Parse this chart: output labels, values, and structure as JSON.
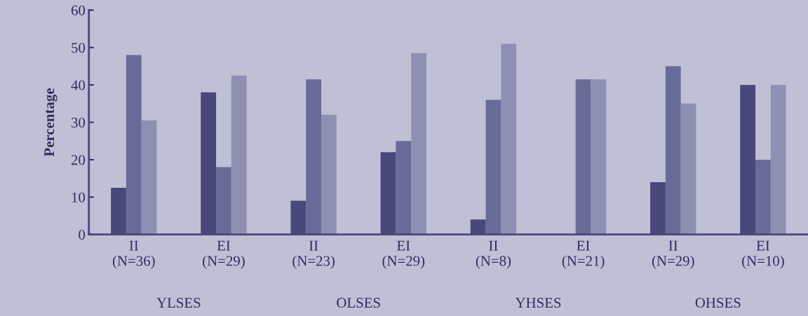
{
  "chart_data": {
    "type": "bar",
    "ylabel": "Percentage",
    "categories": [
      "II\n(N=36)",
      "EI\n(N=29)",
      "II\n(N=23)",
      "EI\n(N=29)",
      "II\n(N=8)",
      "EI\n(N=21)",
      "II\n(N=29)",
      "EI\n(N=10)"
    ],
    "series": [
      {
        "color": "#48487a",
        "values": [
          12.5,
          38,
          9,
          22,
          4,
          0,
          14,
          40
        ]
      },
      {
        "color": "#686a97",
        "values": [
          48,
          18,
          41.5,
          25,
          36,
          41.5,
          45,
          20
        ]
      },
      {
        "color": "#8e90b3",
        "values": [
          30.5,
          42.5,
          32,
          48.5,
          51,
          41.5,
          35,
          40
        ]
      }
    ],
    "annotations": [
      "YLSES",
      "OLSES",
      "YHSES",
      "OHSES"
    ],
    "ylim": [
      0,
      60
    ],
    "yticks": [
      0,
      10,
      20,
      30,
      40,
      50,
      60
    ],
    "grid": false,
    "legend": false
  }
}
